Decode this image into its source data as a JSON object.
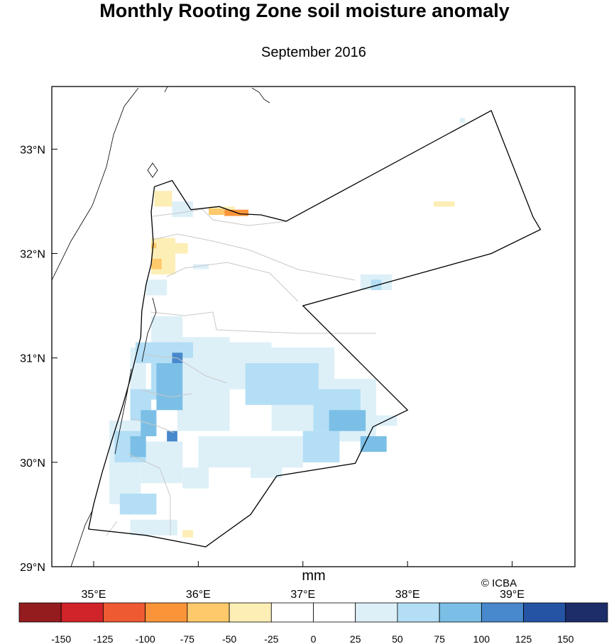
{
  "title": "Monthly Rooting Zone soil moisture anomaly",
  "subtitle": "September 2016",
  "credit": "© ICBA",
  "map": {
    "lon_range": [
      34.6,
      39.6
    ],
    "lat_range": [
      29.0,
      33.6
    ],
    "lon_ticks": [
      {
        "value": 35,
        "label": "35°E"
      },
      {
        "value": 36,
        "label": "36°E"
      },
      {
        "value": 37,
        "label": "37°E"
      },
      {
        "value": 38,
        "label": "38°E"
      },
      {
        "value": 39,
        "label": "39°E"
      }
    ],
    "lat_ticks": [
      {
        "value": 29,
        "label": "29°N"
      },
      {
        "value": 30,
        "label": "30°N"
      },
      {
        "value": 31,
        "label": "31°N"
      },
      {
        "value": 32,
        "label": "32°N"
      },
      {
        "value": 33,
        "label": "33°N"
      }
    ],
    "country_border": [
      [
        34.95,
        29.36
      ],
      [
        35.5,
        29.3
      ],
      [
        36.07,
        29.19
      ],
      [
        36.5,
        29.5
      ],
      [
        36.75,
        29.87
      ],
      [
        37.5,
        29.99
      ],
      [
        37.67,
        30.34
      ],
      [
        38.0,
        30.5
      ],
      [
        37.0,
        31.5
      ],
      [
        37.0,
        31.5
      ],
      [
        38.8,
        32.0
      ],
      [
        39.27,
        32.23
      ],
      [
        39.2,
        32.35
      ],
      [
        38.8,
        33.37
      ],
      [
        38.8,
        33.37
      ],
      [
        36.84,
        32.31
      ],
      [
        36.6,
        32.37
      ],
      [
        36.4,
        32.38
      ],
      [
        36.2,
        32.45
      ],
      [
        35.93,
        32.42
      ],
      [
        35.75,
        32.7
      ],
      [
        35.58,
        32.64
      ],
      [
        35.55,
        32.4
      ],
      [
        35.57,
        32.1
      ],
      [
        35.55,
        31.9
      ],
      [
        35.5,
        31.7
      ],
      [
        35.46,
        31.45
      ],
      [
        35.45,
        31.2
      ],
      [
        35.4,
        31.0
      ],
      [
        35.35,
        30.8
      ],
      [
        35.28,
        30.55
      ],
      [
        35.17,
        30.2
      ],
      [
        35.08,
        29.9
      ],
      [
        35.0,
        29.6
      ],
      [
        34.95,
        29.36
      ]
    ],
    "legend_unit": "mm",
    "colorbar": {
      "colors": [
        "#941c1f",
        "#d1232a",
        "#ee5a32",
        "#fa9439",
        "#fdc96b",
        "#fdeeb5",
        "#ffffff",
        "#ffffff",
        "#ddf0f8",
        "#b3def5",
        "#7bbfe6",
        "#4888cc",
        "#2554a4",
        "#1d2d6a"
      ],
      "labels": [
        "-150",
        "-125",
        "-100",
        "-75",
        "-50",
        "-25",
        "0",
        "25",
        "50",
        "75",
        "100",
        "125",
        "150"
      ]
    },
    "anomaly_cells": [
      {
        "lon": [
          35.8,
          36.3
        ],
        "lat": [
          30.3,
          31.2
        ],
        "class": "25"
      },
      {
        "lon": [
          36.3,
          36.7
        ],
        "lat": [
          30.7,
          31.15
        ],
        "class": "25"
      },
      {
        "lon": [
          36.7,
          37.3
        ],
        "lat": [
          30.3,
          31.1
        ],
        "class": "25"
      },
      {
        "lon": [
          37.3,
          37.7
        ],
        "lat": [
          30.2,
          30.8
        ],
        "class": "25"
      },
      {
        "lon": [
          37.6,
          37.9
        ],
        "lat": [
          30.35,
          30.45
        ],
        "class": "25"
      },
      {
        "lon": [
          36.0,
          37.0
        ],
        "lat": [
          29.95,
          30.25
        ],
        "class": "25"
      },
      {
        "lon": [
          36.5,
          36.8
        ],
        "lat": [
          29.85,
          30.0
        ],
        "class": "25"
      },
      {
        "lon": [
          35.15,
          35.45
        ],
        "lat": [
          29.6,
          30.4
        ],
        "class": "25"
      },
      {
        "lon": [
          35.45,
          35.85
        ],
        "lat": [
          29.8,
          30.2
        ],
        "class": "25"
      },
      {
        "lon": [
          35.85,
          36.1
        ],
        "lat": [
          29.75,
          29.95
        ],
        "class": "25"
      },
      {
        "lon": [
          35.35,
          35.8
        ],
        "lat": [
          29.3,
          29.45
        ],
        "class": "25"
      },
      {
        "lon": [
          35.35,
          35.5
        ],
        "lat": [
          30.6,
          31.1
        ],
        "class": "25"
      },
      {
        "lon": [
          35.55,
          35.85
        ],
        "lat": [
          31.1,
          31.4
        ],
        "class": "25"
      },
      {
        "lon": [
          35.5,
          35.7
        ],
        "lat": [
          31.6,
          31.75
        ],
        "class": "25"
      },
      {
        "lon": [
          35.75,
          35.95
        ],
        "lat": [
          32.35,
          32.5
        ],
        "class": "25"
      },
      {
        "lon": [
          35.95,
          36.1
        ],
        "lat": [
          31.85,
          31.9
        ],
        "class": "25"
      },
      {
        "lon": [
          37.55,
          37.85
        ],
        "lat": [
          31.65,
          31.8
        ],
        "class": "25"
      },
      {
        "lon": [
          38.5,
          38.55
        ],
        "lat": [
          33.25,
          33.3
        ],
        "class": "25"
      },
      {
        "lon": [
          36.45,
          37.15
        ],
        "lat": [
          30.55,
          30.95
        ],
        "class": "50"
      },
      {
        "lon": [
          37.1,
          37.55
        ],
        "lat": [
          30.3,
          30.7
        ],
        "class": "50"
      },
      {
        "lon": [
          37.0,
          37.35
        ],
        "lat": [
          30.0,
          30.3
        ],
        "class": "50"
      },
      {
        "lon": [
          35.55,
          35.75
        ],
        "lat": [
          30.6,
          31.1
        ],
        "class": "50"
      },
      {
        "lon": [
          35.35,
          35.55
        ],
        "lat": [
          30.4,
          30.7
        ],
        "class": "50"
      },
      {
        "lon": [
          35.2,
          35.5
        ],
        "lat": [
          30.0,
          30.3
        ],
        "class": "50"
      },
      {
        "lon": [
          35.25,
          35.6
        ],
        "lat": [
          29.5,
          29.7
        ],
        "class": "50"
      },
      {
        "lon": [
          35.4,
          35.75
        ],
        "lat": [
          30.95,
          31.15
        ],
        "class": "50"
      },
      {
        "lon": [
          35.75,
          35.95
        ],
        "lat": [
          31.0,
          31.15
        ],
        "class": "50"
      },
      {
        "lon": [
          37.65,
          37.75
        ],
        "lat": [
          31.65,
          31.75
        ],
        "class": "50"
      },
      {
        "lon": [
          35.6,
          35.85
        ],
        "lat": [
          30.5,
          30.95
        ],
        "class": "75"
      },
      {
        "lon": [
          35.45,
          35.6
        ],
        "lat": [
          30.25,
          30.5
        ],
        "class": "75"
      },
      {
        "lon": [
          35.35,
          35.5
        ],
        "lat": [
          30.05,
          30.25
        ],
        "class": "75"
      },
      {
        "lon": [
          37.25,
          37.6
        ],
        "lat": [
          30.3,
          30.5
        ],
        "class": "75"
      },
      {
        "lon": [
          37.55,
          37.8
        ],
        "lat": [
          30.1,
          30.25
        ],
        "class": "75"
      },
      {
        "lon": [
          35.75,
          35.85
        ],
        "lat": [
          30.95,
          31.05
        ],
        "class": "100"
      },
      {
        "lon": [
          35.7,
          35.8
        ],
        "lat": [
          30.2,
          30.3
        ],
        "class": "100"
      },
      {
        "lon": [
          35.58,
          35.75
        ],
        "lat": [
          32.45,
          32.6
        ],
        "class": "-25"
      },
      {
        "lon": [
          35.55,
          35.78
        ],
        "lat": [
          31.8,
          32.15
        ],
        "class": "-25"
      },
      {
        "lon": [
          35.75,
          35.9
        ],
        "lat": [
          32.0,
          32.1
        ],
        "class": "-25"
      },
      {
        "lon": [
          36.1,
          36.35
        ],
        "lat": [
          32.4,
          32.45
        ],
        "class": "-25"
      },
      {
        "lon": [
          38.25,
          38.45
        ],
        "lat": [
          32.45,
          32.5
        ],
        "class": "-25"
      },
      {
        "lon": [
          35.85,
          35.95
        ],
        "lat": [
          29.28,
          29.35
        ],
        "class": "-25"
      },
      {
        "lon": [
          36.1,
          36.25
        ],
        "lat": [
          32.37,
          32.43
        ],
        "class": "-50"
      },
      {
        "lon": [
          35.55,
          35.65
        ],
        "lat": [
          31.85,
          31.95
        ],
        "class": "-50"
      },
      {
        "lon": [
          35.55,
          35.6
        ],
        "lat": [
          32.05,
          32.1
        ],
        "class": "-50"
      },
      {
        "lon": [
          36.25,
          36.48
        ],
        "lat": [
          32.36,
          32.42
        ],
        "class": "-75"
      }
    ]
  }
}
